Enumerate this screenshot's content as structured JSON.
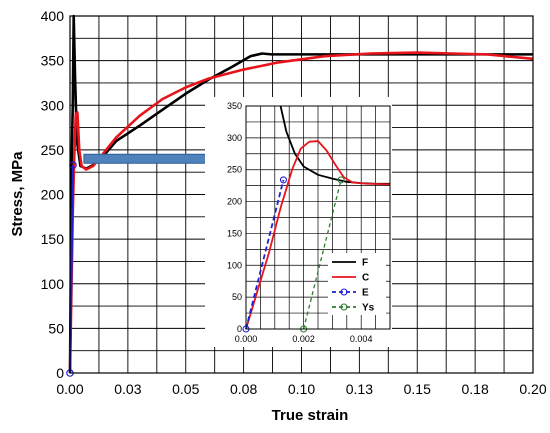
{
  "chart_data": [
    {
      "id": "main",
      "type": "line",
      "xlabel": "True strain",
      "ylabel": "Stress, MPa",
      "xlim": [
        0,
        0.2
      ],
      "ylim": [
        0,
        400
      ],
      "x_ticks": [
        0.0,
        0.025,
        0.05,
        0.075,
        0.1,
        0.125,
        0.15,
        0.175,
        0.2
      ],
      "x_tick_labels": [
        "0.00",
        "0.03",
        "0.05",
        "0.08",
        "0.10",
        "0.13",
        "0.15",
        "0.18",
        "0.20"
      ],
      "y_ticks": [
        0,
        50,
        100,
        150,
        200,
        250,
        300,
        350,
        400
      ],
      "y_tick_labels": [
        "0",
        "50",
        "100",
        "150",
        "200",
        "250",
        "300",
        "350",
        "400"
      ],
      "grid": true,
      "series": [
        {
          "name": "F",
          "color": "#000000",
          "points": [
            [
              0,
              0
            ],
            [
              0.0008,
              250
            ],
            [
              0.0012,
              300
            ],
            [
              0.0014,
              350
            ],
            [
              0.0016,
              400
            ],
            [
              0.0022,
              330
            ],
            [
              0.003,
              260
            ],
            [
              0.0045,
              232
            ],
            [
              0.007,
              229
            ],
            [
              0.01,
              233
            ],
            [
              0.015,
              245
            ],
            [
              0.02,
              260
            ],
            [
              0.03,
              277
            ],
            [
              0.04,
              295
            ],
            [
              0.05,
              313
            ],
            [
              0.06,
              329
            ],
            [
              0.07,
              343
            ],
            [
              0.078,
              355
            ],
            [
              0.083,
              358
            ],
            [
              0.087,
              357
            ],
            [
              0.1,
              357
            ],
            [
              0.125,
              357
            ],
            [
              0.15,
              357
            ],
            [
              0.175,
              357
            ],
            [
              0.2,
              357
            ]
          ]
        },
        {
          "name": "C",
          "color": "#e8141b",
          "points": [
            [
              0,
              0
            ],
            [
              0.0012,
              180
            ],
            [
              0.0018,
              240
            ],
            [
              0.0025,
              290
            ],
            [
              0.0032,
              292
            ],
            [
              0.004,
              250
            ],
            [
              0.005,
              232
            ],
            [
              0.007,
              228
            ],
            [
              0.01,
              232
            ],
            [
              0.015,
              248
            ],
            [
              0.02,
              264
            ],
            [
              0.03,
              288
            ],
            [
              0.04,
              307
            ],
            [
              0.05,
              320
            ],
            [
              0.06,
              330
            ],
            [
              0.075,
              340
            ],
            [
              0.09,
              348
            ],
            [
              0.11,
              355
            ],
            [
              0.13,
              358
            ],
            [
              0.15,
              359
            ],
            [
              0.165,
              358
            ],
            [
              0.18,
              357
            ],
            [
              0.2,
              352
            ]
          ]
        },
        {
          "name": "E",
          "color": "#1f1fd6",
          "marker": "circle",
          "points": [
            [
              0,
              0
            ],
            [
              0.0013,
              233
            ]
          ]
        }
      ]
    },
    {
      "id": "inset",
      "type": "line",
      "xlim": [
        0,
        0.005
      ],
      "ylim": [
        0,
        350
      ],
      "x_ticks": [
        0,
        0.002,
        0.004
      ],
      "x_tick_labels": [
        "0.000",
        "0.002",
        "0.004"
      ],
      "y_ticks": [
        0,
        50,
        100,
        150,
        200,
        250,
        300,
        350
      ],
      "y_tick_labels": [
        "0",
        "50",
        "100",
        "150",
        "200",
        "250",
        "300",
        "350"
      ],
      "grid": true,
      "legend": {
        "position": "right",
        "entries": [
          "F",
          "C",
          "E",
          "Ys"
        ]
      },
      "series": [
        {
          "name": "F",
          "color": "#000000",
          "points": [
            [
              0.0012,
              350
            ],
            [
              0.0014,
              310
            ],
            [
              0.0017,
              275
            ],
            [
              0.002,
              255
            ],
            [
              0.0025,
              242
            ],
            [
              0.003,
              236
            ],
            [
              0.0035,
              231
            ],
            [
              0.004,
              229
            ],
            [
              0.0045,
              228
            ],
            [
              0.005,
              228
            ]
          ]
        },
        {
          "name": "C",
          "color": "#e8141b",
          "points": [
            [
              0,
              0
            ],
            [
              0.0004,
              60
            ],
            [
              0.0008,
              120
            ],
            [
              0.0012,
              190
            ],
            [
              0.0016,
              250
            ],
            [
              0.0019,
              283
            ],
            [
              0.0022,
              294
            ],
            [
              0.0025,
              295
            ],
            [
              0.0028,
              280
            ],
            [
              0.0031,
              258
            ],
            [
              0.0034,
              238
            ],
            [
              0.0037,
              230
            ],
            [
              0.0042,
              228
            ],
            [
              0.005,
              227
            ]
          ]
        },
        {
          "name": "E",
          "color": "#1f1fd6",
          "marker": "circle",
          "dash": "dash",
          "points": [
            [
              0,
              0
            ],
            [
              0.0013,
              234
            ]
          ]
        },
        {
          "name": "Ys",
          "color": "#2e7d2e",
          "marker": "circle",
          "dash": "dash",
          "points": [
            [
              0.002,
              0
            ],
            [
              0.0033,
              234
            ]
          ]
        }
      ]
    }
  ],
  "annotations": {
    "arrow": {
      "from": [
        0.006,
        240
      ],
      "to": [
        0.08,
        240
      ],
      "color": "#4f81bd"
    }
  }
}
